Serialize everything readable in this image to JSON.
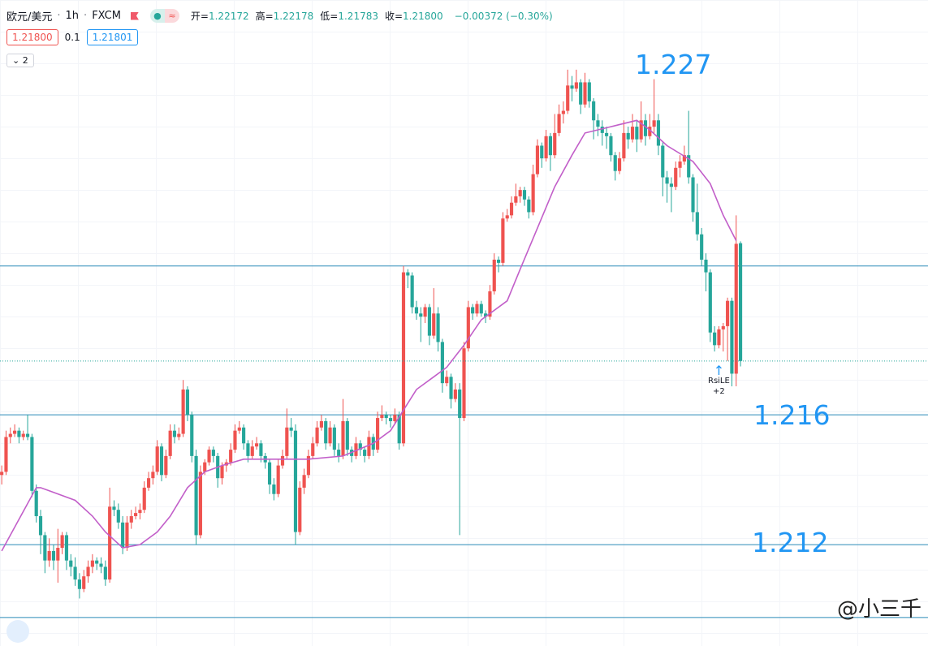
{
  "header": {
    "symbol": "欧元/美元",
    "interval": "1h",
    "exchange": "FXCM",
    "ohlc": [
      {
        "label": "开=",
        "value": "1.22172"
      },
      {
        "label": "高=",
        "value": "1.22178"
      },
      {
        "label": "低=",
        "value": "1.21783"
      },
      {
        "label": "收=",
        "value": "1.21800"
      }
    ],
    "change": "−0.00372 (−0.30%)",
    "sell": "1.21800",
    "spread": "0.1",
    "buy": "1.21801",
    "indicators_count": "2"
  },
  "watermark": "@小三千",
  "chart_data": {
    "type": "candlestick",
    "xlim": [
      -0.4,
      214.4
    ],
    "ylim": [
      1.209,
      1.2294
    ],
    "up_color": "#ef5350",
    "down_color": "#26a69a",
    "open": [
      1.2144,
      1.2145,
      1.2156,
      1.2157,
      1.2158,
      1.2156,
      1.2157,
      1.2156,
      1.2139,
      1.2131,
      1.2125,
      1.2117,
      1.212,
      1.2117,
      1.2121,
      1.2125,
      1.2117,
      1.2115,
      1.2111,
      1.2108,
      1.2112,
      1.2115,
      1.2117,
      1.2116,
      1.2115,
      1.2111,
      1.2134,
      1.2133,
      1.2129,
      1.2121,
      1.2129,
      1.2131,
      1.2132,
      1.2133,
      1.214,
      1.2143,
      1.2145,
      1.2153,
      1.2144,
      1.215,
      1.2158,
      1.2156,
      1.2157,
      1.2171,
      1.2163,
      1.215,
      1.2125,
      1.2145,
      1.2148,
      1.2152,
      1.215,
      1.2143,
      1.2147,
      1.2148,
      1.2152,
      1.2158,
      1.2159,
      1.2154,
      1.215,
      1.2153,
      1.2154,
      1.215,
      1.2148,
      1.2141,
      1.2138,
      1.2147,
      1.215,
      1.2159,
      1.2158,
      1.2126,
      1.214,
      1.2144,
      1.215,
      1.2154,
      1.2159,
      1.2161,
      1.2154,
      1.2159,
      1.2152,
      1.215,
      1.2161,
      1.2152,
      1.215,
      1.2154,
      1.2152,
      1.215,
      1.2156,
      1.2152,
      1.2162,
      1.2163,
      1.2162,
      1.2161,
      1.2163,
      1.2154,
      1.2208,
      1.2207,
      1.2197,
      1.2195,
      1.2194,
      1.2197,
      1.2188,
      1.2195,
      1.2186,
      1.2173,
      1.2175,
      1.2168,
      1.2171,
      1.2162,
      1.2184,
      1.2197,
      1.2195,
      1.2198,
      1.2195,
      1.2194,
      1.2202,
      1.2212,
      1.2211,
      1.2225,
      1.2226,
      1.223,
      1.2232,
      1.2234,
      1.2231,
      1.2227,
      1.2239,
      1.2248,
      1.2244,
      1.2251,
      1.2245,
      1.2252,
      1.2258,
      1.2259,
      1.2267,
      1.2266,
      1.2268,
      1.2261,
      1.2268,
      1.2262,
      1.2256,
      1.2254,
      1.2252,
      1.2251,
      1.2245,
      1.224,
      1.2244,
      1.2252,
      1.225,
      1.2254,
      1.225,
      1.2256,
      1.2251,
      1.2254,
      1.2256,
      1.2248,
      1.2238,
      1.2236,
      1.2235,
      1.2241,
      1.2243,
      1.2245,
      1.2238,
      1.2227,
      1.222,
      1.2212,
      1.2208,
      1.2189,
      1.2185,
      1.219,
      1.2191,
      1.2199,
      1.2176,
      1.22172
    ],
    "high": [
      1.2147,
      1.2158,
      1.2159,
      1.216,
      1.2159,
      1.2158,
      1.2163,
      1.2157,
      1.2141,
      1.2133,
      1.2126,
      1.2124,
      1.2122,
      1.2127,
      1.2126,
      1.2126,
      1.2119,
      1.2118,
      1.2113,
      1.2114,
      1.2117,
      1.2119,
      1.2118,
      1.2118,
      1.2117,
      1.214,
      1.2136,
      1.2135,
      1.2131,
      1.2131,
      1.2133,
      1.2134,
      1.2135,
      1.2142,
      1.2145,
      1.2147,
      1.2155,
      1.2154,
      1.2152,
      1.216,
      1.216,
      1.2159,
      1.2174,
      1.2172,
      1.2164,
      1.2152,
      1.2147,
      1.2149,
      1.2153,
      1.2153,
      1.2151,
      1.2148,
      1.2149,
      1.2154,
      1.216,
      1.2161,
      1.216,
      1.2155,
      1.2155,
      1.2156,
      1.2155,
      1.2151,
      1.2149,
      1.2143,
      1.2149,
      1.2152,
      1.2165,
      1.2162,
      1.216,
      1.2142,
      1.2146,
      1.2152,
      1.2156,
      1.2161,
      1.2163,
      1.2162,
      1.2161,
      1.216,
      1.2154,
      1.2168,
      1.2162,
      1.2153,
      1.2156,
      1.2155,
      1.2153,
      1.2158,
      1.2157,
      1.2164,
      1.2166,
      1.2164,
      1.2163,
      1.2165,
      1.2164,
      1.221,
      1.2209,
      1.2208,
      1.2199,
      1.2197,
      1.2198,
      1.2198,
      1.2203,
      1.2197,
      1.2187,
      1.2177,
      1.2176,
      1.2173,
      1.2173,
      1.2186,
      1.2199,
      1.2198,
      1.2199,
      1.2199,
      1.2196,
      1.2204,
      1.2214,
      1.2213,
      1.2227,
      1.2228,
      1.2232,
      1.2236,
      1.2235,
      1.2235,
      1.2232,
      1.2242,
      1.225,
      1.2249,
      1.2253,
      1.2252,
      1.2258,
      1.2261,
      1.2262,
      1.2272,
      1.227,
      1.2272,
      1.2269,
      1.2271,
      1.2269,
      1.2263,
      1.2258,
      1.2256,
      1.2254,
      1.2252,
      1.2246,
      1.2246,
      1.2256,
      1.2254,
      1.2258,
      1.2256,
      1.2262,
      1.2258,
      1.2258,
      1.2269,
      1.2258,
      1.2249,
      1.224,
      1.2238,
      1.2243,
      1.2245,
      1.2248,
      1.2259,
      1.2239,
      1.2236,
      1.2222,
      1.2214,
      1.2209,
      1.2191,
      1.2191,
      1.2192,
      1.22,
      1.22,
      1.2226,
      1.22178
    ],
    "low": [
      1.2141,
      1.2144,
      1.2154,
      1.2156,
      1.2154,
      1.2155,
      1.2155,
      1.2137,
      1.2129,
      1.2119,
      1.2113,
      1.2115,
      1.2114,
      1.211,
      1.2119,
      1.2114,
      1.2112,
      1.2109,
      1.2105,
      1.2107,
      1.211,
      1.2113,
      1.2114,
      1.2113,
      1.2109,
      1.211,
      1.2131,
      1.2127,
      1.2119,
      1.212,
      1.2127,
      1.213,
      1.213,
      1.2132,
      1.2139,
      1.2141,
      1.2144,
      1.2142,
      1.2143,
      1.2149,
      1.2154,
      1.2155,
      1.2156,
      1.2161,
      1.2148,
      1.2122,
      1.2124,
      1.2144,
      1.2147,
      1.2148,
      1.214,
      1.2141,
      1.2145,
      1.2147,
      1.2151,
      1.2157,
      1.2152,
      1.2148,
      1.2149,
      1.2152,
      1.2148,
      1.2146,
      1.2138,
      1.2136,
      1.2137,
      1.2146,
      1.2149,
      1.2156,
      1.2122,
      1.2125,
      1.2138,
      1.2143,
      1.2149,
      1.2153,
      1.2158,
      1.2152,
      1.2153,
      1.215,
      1.2148,
      1.2149,
      1.215,
      1.2148,
      1.2149,
      1.215,
      1.2148,
      1.2149,
      1.215,
      1.2151,
      1.2161,
      1.216,
      1.2159,
      1.216,
      1.2152,
      1.2153,
      1.2203,
      1.2195,
      1.2193,
      1.2186,
      1.2192,
      1.2185,
      1.2187,
      1.2183,
      1.217,
      1.2172,
      1.2165,
      1.2167,
      1.2125,
      1.2161,
      1.2183,
      1.2193,
      1.2194,
      1.2194,
      1.2192,
      1.2193,
      1.2201,
      1.2208,
      1.221,
      1.2224,
      1.2225,
      1.2229,
      1.223,
      1.2229,
      1.2225,
      1.2226,
      1.2238,
      1.2241,
      1.2243,
      1.224,
      1.2244,
      1.2251,
      1.2255,
      1.2258,
      1.2262,
      1.2265,
      1.2258,
      1.226,
      1.226,
      1.225,
      1.2251,
      1.2248,
      1.2247,
      1.2243,
      1.2237,
      1.2239,
      1.2243,
      1.2247,
      1.2249,
      1.2246,
      1.2249,
      1.2248,
      1.225,
      1.2252,
      1.2245,
      1.2232,
      1.223,
      1.2227,
      1.2234,
      1.2238,
      1.2242,
      1.2236,
      1.2224,
      1.2218,
      1.221,
      1.2202,
      1.2186,
      1.2183,
      1.2184,
      1.2183,
      1.218,
      1.2172,
      1.2172,
      1.21783
    ],
    "close": [
      1.2145,
      1.2156,
      1.2157,
      1.2158,
      1.2156,
      1.2157,
      1.2156,
      1.2139,
      1.2131,
      1.2125,
      1.2117,
      1.212,
      1.2117,
      1.2121,
      1.2125,
      1.2117,
      1.2115,
      1.2111,
      1.2108,
      1.2112,
      1.2115,
      1.2117,
      1.2116,
      1.2115,
      1.2111,
      1.2134,
      1.2133,
      1.2129,
      1.2121,
      1.2129,
      1.2131,
      1.2132,
      1.2133,
      1.214,
      1.2143,
      1.2145,
      1.2153,
      1.2144,
      1.215,
      1.2158,
      1.2156,
      1.2157,
      1.2171,
      1.2163,
      1.215,
      1.2125,
      1.2145,
      1.2148,
      1.2152,
      1.215,
      1.2143,
      1.2147,
      1.2148,
      1.2152,
      1.2158,
      1.2159,
      1.2154,
      1.215,
      1.2153,
      1.2154,
      1.215,
      1.2148,
      1.2141,
      1.2138,
      1.2147,
      1.215,
      1.2159,
      1.2158,
      1.2126,
      1.214,
      1.2144,
      1.215,
      1.2154,
      1.2159,
      1.2161,
      1.2154,
      1.2159,
      1.2152,
      1.215,
      1.2161,
      1.2152,
      1.215,
      1.2154,
      1.2152,
      1.215,
      1.2156,
      1.2152,
      1.2162,
      1.2163,
      1.2162,
      1.2161,
      1.2163,
      1.2154,
      1.2208,
      1.2207,
      1.2197,
      1.2195,
      1.2194,
      1.2197,
      1.2188,
      1.2195,
      1.2186,
      1.2173,
      1.2175,
      1.2168,
      1.2171,
      1.2162,
      1.2184,
      1.2197,
      1.2195,
      1.2198,
      1.2195,
      1.2194,
      1.2202,
      1.2212,
      1.2211,
      1.2225,
      1.2226,
      1.223,
      1.2232,
      1.2234,
      1.2231,
      1.2227,
      1.2239,
      1.2248,
      1.2244,
      1.2251,
      1.2245,
      1.2252,
      1.2258,
      1.2259,
      1.2267,
      1.2266,
      1.2268,
      1.2261,
      1.2268,
      1.2262,
      1.2256,
      1.2254,
      1.2252,
      1.2251,
      1.2245,
      1.224,
      1.2244,
      1.2252,
      1.225,
      1.2254,
      1.225,
      1.2256,
      1.2251,
      1.2254,
      1.2256,
      1.2248,
      1.2238,
      1.2236,
      1.2235,
      1.2241,
      1.2243,
      1.2245,
      1.2238,
      1.2227,
      1.222,
      1.2212,
      1.2208,
      1.2189,
      1.2185,
      1.219,
      1.2191,
      1.2199,
      1.2176,
      1.2217,
      1.218
    ],
    "ma": {
      "color": "#c25fc9",
      "x": [
        0,
        4,
        8,
        9,
        11,
        17,
        21,
        24,
        28,
        32,
        36,
        39,
        43,
        47,
        51,
        56,
        64,
        71,
        79,
        86,
        90,
        96,
        100,
        103,
        107,
        111,
        117,
        120,
        124,
        128,
        132,
        135,
        141,
        147,
        150,
        154,
        160,
        164,
        167,
        170
      ],
      "values": [
        1.212,
        1.213,
        1.214,
        1.214,
        1.2139,
        1.2136,
        1.2131,
        1.2126,
        1.2121,
        1.2122,
        1.2126,
        1.2131,
        1.214,
        1.2145,
        1.2147,
        1.2149,
        1.2149,
        1.2149,
        1.215,
        1.2154,
        1.2158,
        1.2171,
        1.2175,
        1.2178,
        1.2185,
        1.2193,
        1.2199,
        1.2209,
        1.2222,
        1.2235,
        1.2245,
        1.2252,
        1.2254,
        1.2256,
        1.2253,
        1.2248,
        1.2243,
        1.2236,
        1.2226,
        1.2218
      ]
    },
    "levels": [
      1.221,
      1.2163,
      1.2122,
      1.2099
    ],
    "level_color": "#2a8ab8",
    "last_line_color": "#26a69a",
    "annotations": [
      "1.227",
      "1.216",
      "1.212"
    ],
    "signal": {
      "label": "RsiLE",
      "count": "+2"
    }
  }
}
